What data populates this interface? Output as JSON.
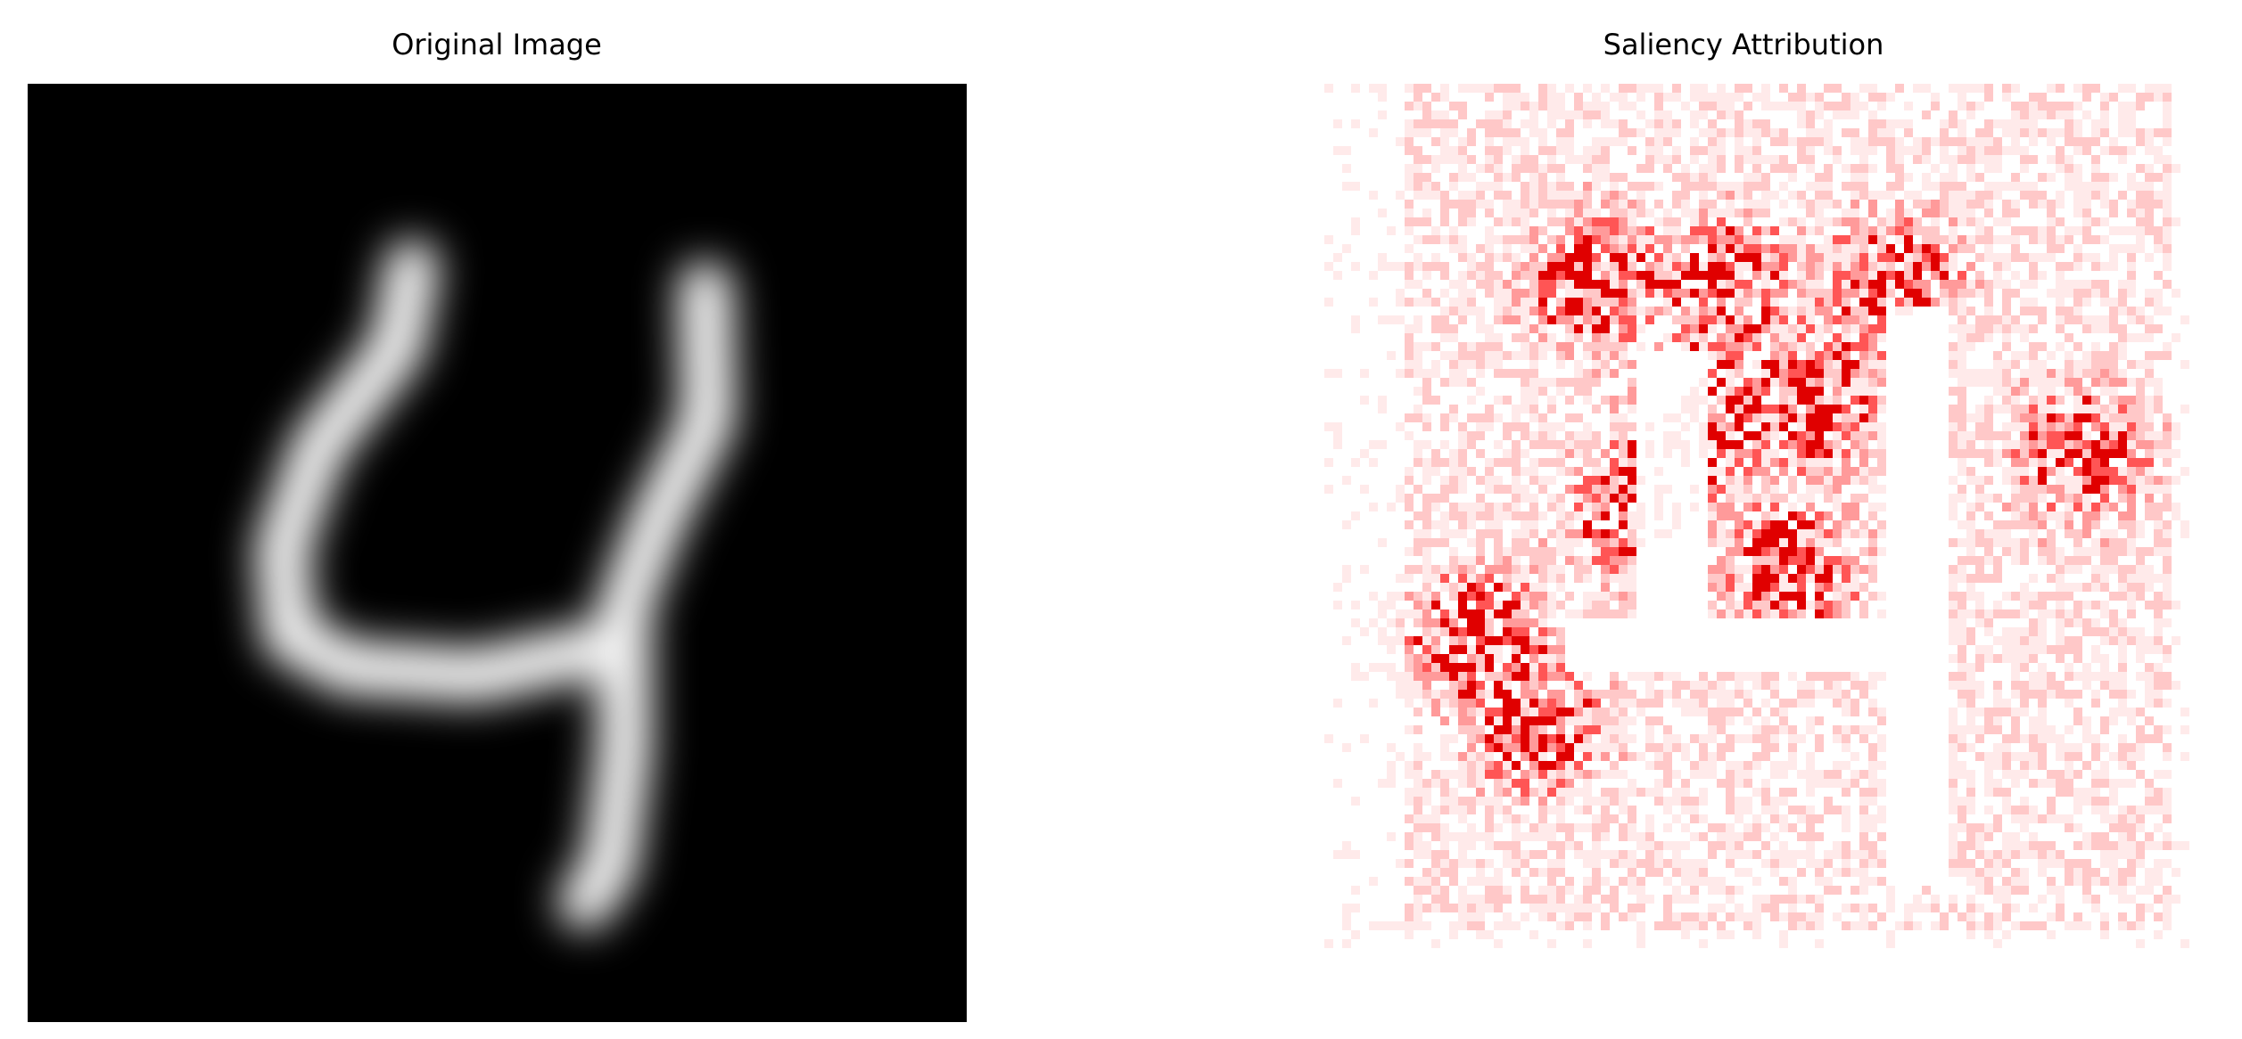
{
  "panels": [
    {
      "title": "Original Image"
    },
    {
      "title": "Saliency Attribution"
    }
  ]
}
